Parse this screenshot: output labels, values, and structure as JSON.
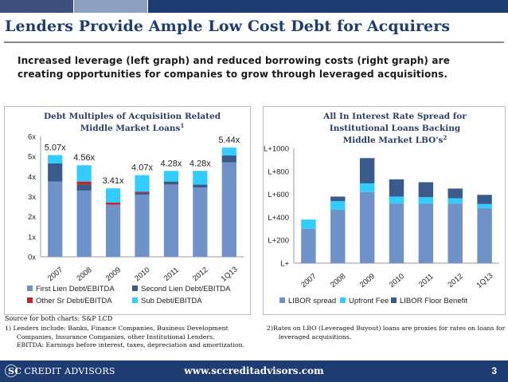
{
  "slide": {
    "title": "Lenders Provide Ample Low Cost Debt for Acquirers",
    "subtitle_line1": "Increased leverage (left graph) and reduced borrowing costs (right graph) are",
    "subtitle_line2": "creating opportunities for companies to grow through leveraged acquisitions.",
    "source": "Source for both charts: S&P LCD",
    "footnote1_lines": [
      "1) Lenders include: Banks, Finance Companies, Business Development",
      "   Companies, Insurance Companies, other Institutional Lenders.",
      "   EBITDA: Earnings before interest, taxes, depreciation and amortization."
    ],
    "footnote2_lines": [
      "2)Rates on LBO (Leveraged Buyout) loans are proxies for rates on loans for",
      "   leveraged acquisitions."
    ],
    "website": "www.sccreditadvisors.com",
    "page_number": "3",
    "logo_prefix": "SC",
    "logo_text": "CREDIT ADVISORS"
  },
  "colors": {
    "title": "#1f3c72",
    "footer": "#1f3c72",
    "dark_blue": "#4472c4",
    "light_blue_bar": "#5b9bd5",
    "red": "#c0272d",
    "cyan": "#33ccff",
    "steel": "#4f6fa8"
  },
  "chart_data": [
    {
      "type": "bar",
      "stacked": true,
      "title_lines": [
        "Debt Multiples of Acquisition Related",
        "Middle Market Loans"
      ],
      "title_superscript": "1",
      "categories": [
        "2007",
        "2008",
        "2009",
        "2010",
        "2011",
        "2012",
        "1Q13"
      ],
      "series": [
        {
          "name": "First Lien Debt/EBITDA",
          "color": "#6f93c9",
          "values": [
            3.75,
            3.3,
            2.6,
            3.1,
            3.6,
            3.45,
            4.7
          ]
        },
        {
          "name": "Second Lien Debt/EBITDA",
          "color": "#3a5a8c",
          "values": [
            0.9,
            0.3,
            0.0,
            0.1,
            0.15,
            0.15,
            0.35
          ]
        },
        {
          "name": "Other Sr Debt/EBITDA",
          "color": "#c0272d",
          "values": [
            0.0,
            0.15,
            0.1,
            0.05,
            0.0,
            0.0,
            0.0
          ]
        },
        {
          "name": "Sub Debt/EBITDA",
          "color": "#33ccff",
          "values": [
            0.42,
            0.81,
            0.71,
            0.82,
            0.53,
            0.68,
            0.39
          ]
        }
      ],
      "totals": [
        5.07,
        4.56,
        3.41,
        4.07,
        4.28,
        4.28,
        5.44
      ],
      "total_labels": [
        "5.07x",
        "4.56x",
        "3.41x",
        "4.07x",
        "4.28x",
        "4.28x",
        "5.44x"
      ],
      "yticks": [
        "0x",
        "1x",
        "2x",
        "3x",
        "4x",
        "5x",
        "6x"
      ],
      "ylim": [
        0,
        6
      ],
      "legend_position": "bottom"
    },
    {
      "type": "bar",
      "stacked": true,
      "title_lines": [
        "All In Interest Rate Spread for",
        "Institutional Loans Backing",
        "Middle Market LBO's"
      ],
      "title_superscript": "2",
      "categories": [
        "2007",
        "2008",
        "2009",
        "2010",
        "2011",
        "2012",
        "1Q13"
      ],
      "series": [
        {
          "name": "LIBOR spread",
          "color": "#6f93c9",
          "values": [
            300,
            465,
            620,
            520,
            520,
            520,
            480
          ]
        },
        {
          "name": "Upfront Fee",
          "color": "#33ccff",
          "values": [
            80,
            75,
            75,
            60,
            55,
            45,
            35
          ]
        },
        {
          "name": "LIBOR Floor Benefit",
          "color": "#3a5a8c",
          "values": [
            0,
            40,
            220,
            150,
            130,
            85,
            80
          ]
        }
      ],
      "yticks": [
        "L+",
        "L+200",
        "L+400",
        "L+600",
        "L+800",
        "L+1000"
      ],
      "ylim": [
        0,
        1000
      ],
      "legend_position": "bottom"
    }
  ]
}
